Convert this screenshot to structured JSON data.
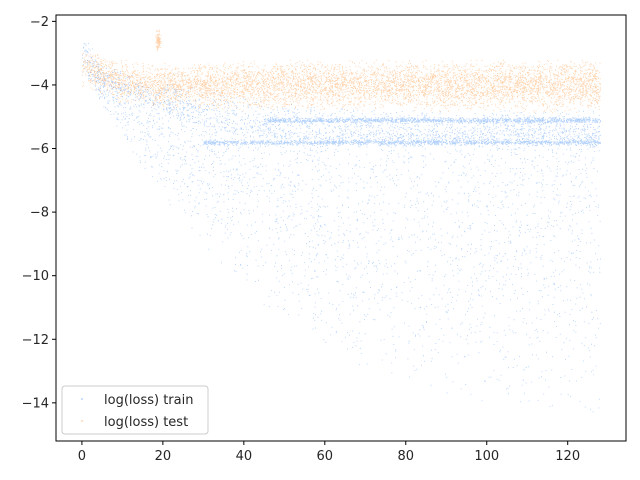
{
  "chart_data": {
    "type": "scatter",
    "title": "",
    "xlabel": "",
    "ylabel": "",
    "xlim": [
      -6.4,
      134.4
    ],
    "ylim": [
      -15.2,
      -1.8
    ],
    "x_ticks": [
      0,
      20,
      40,
      60,
      80,
      100,
      120
    ],
    "y_ticks": [
      -2,
      -4,
      -6,
      -8,
      -10,
      -12,
      -14
    ],
    "grid": false,
    "legend": {
      "placement": "lower-left"
    },
    "series": [
      {
        "name": "log(loss) train",
        "color": "#1f77f4",
        "description_points": [
          {
            "x": 0,
            "y_center": -2.9,
            "y_min": -3.6,
            "y_max": -2.4
          },
          {
            "x": 5,
            "y_center": -3.9,
            "y_min": -4.6,
            "y_max": -3.3
          },
          {
            "x": 10,
            "y_center": -4.2,
            "y_min": -5.8,
            "y_max": -3.6
          },
          {
            "x": 20,
            "y_center": -4.8,
            "y_min": -7.5,
            "y_max": -3.9
          },
          {
            "x": 30,
            "y_center": -5.3,
            "y_min": -9.0,
            "y_max": -4.1
          },
          {
            "x": 40,
            "y_center": -5.6,
            "y_min": -10.5,
            "y_max": -4.4
          },
          {
            "x": 60,
            "y_center": -5.8,
            "y_min": -12.3,
            "y_max": -4.7
          },
          {
            "x": 80,
            "y_center": -5.8,
            "y_min": -13.5,
            "y_max": -4.8
          },
          {
            "x": 100,
            "y_center": -5.8,
            "y_min": -14.0,
            "y_max": -4.8
          },
          {
            "x": 128,
            "y_center": -5.8,
            "y_min": -14.3,
            "y_max": -4.8
          }
        ],
        "bands": [
          {
            "x_start": 30,
            "x_end": 128,
            "y": -5.8
          },
          {
            "x_start": 45,
            "x_end": 128,
            "y": -5.1
          }
        ]
      },
      {
        "name": "log(loss) test",
        "color": "#ff7f0e",
        "description_points": [
          {
            "x": 0,
            "y_center": -3.4,
            "y_min": -3.9,
            "y_max": -3.0
          },
          {
            "x": 10,
            "y_center": -3.9,
            "y_min": -4.4,
            "y_max": -3.4
          },
          {
            "x": 20,
            "y_center": -4.0,
            "y_min": -4.6,
            "y_max": -3.5
          },
          {
            "x": 40,
            "y_center": -4.0,
            "y_min": -4.6,
            "y_max": -3.4
          },
          {
            "x": 80,
            "y_center": -4.0,
            "y_min": -4.6,
            "y_max": -3.4
          },
          {
            "x": 128,
            "y_center": -4.0,
            "y_min": -4.7,
            "y_max": -3.4
          }
        ],
        "cluster": {
          "x": 18.8,
          "y": -2.6
        }
      }
    ]
  }
}
